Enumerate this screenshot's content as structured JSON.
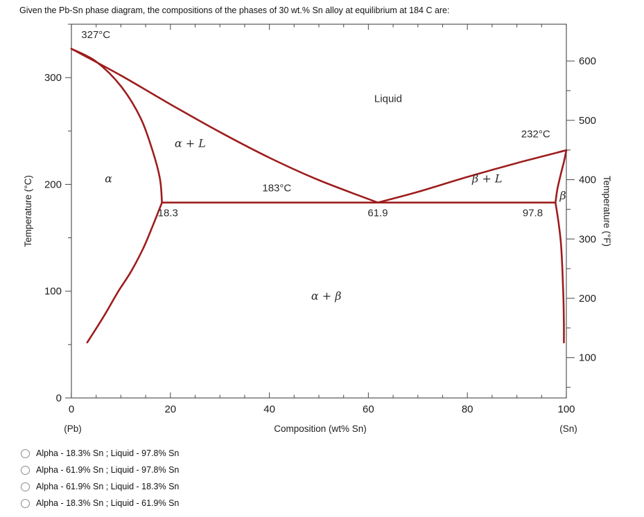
{
  "question": "Given the Pb-Sn phase diagram, the compositions of the phases of 30 wt.% Sn alloy at equilibrium at 184 C are:",
  "options": [
    {
      "label": "Alpha - 18.3% Sn ; Liquid - 97.8% Sn"
    },
    {
      "label": "Alpha - 61.9% Sn ; Liquid - 97.8% Sn"
    },
    {
      "label": "Alpha - 61.9% Sn ; Liquid - 18.3% Sn"
    },
    {
      "label": "Alpha - 18.3% Sn ; Liquid - 61.9% Sn"
    }
  ],
  "chart_data": {
    "type": "line",
    "title": "Pb-Sn phase diagram",
    "xlabel": "Composition (wt% Sn)",
    "ylabel_left": "Temperature (°C)",
    "ylabel_right": "Temperature (°F)",
    "x_endpoint_labels": {
      "left": "(Pb)",
      "right": "(Sn)"
    },
    "xlim": [
      0,
      100
    ],
    "ylim_c": [
      0,
      350
    ],
    "x_ticks": [
      0,
      20,
      40,
      60,
      80,
      100
    ],
    "x_minor_step": 5,
    "y_ticks_c": [
      0,
      100,
      200,
      300
    ],
    "y_minor_step_c": 50,
    "y_ticks_f": [
      100,
      200,
      300,
      400,
      500,
      600
    ],
    "y_minor_step_f": 50,
    "curve_color": "#9e1c1c",
    "frame_color": "#555555",
    "key_points": {
      "pb_melting_c": 327,
      "sn_melting_c": 232,
      "eutectic_temp_c": 183,
      "alpha_max_sn": 18.3,
      "eutectic_composition": 61.9,
      "beta_min_sn": 97.8
    },
    "series": [
      {
        "name": "liquidus-left",
        "points": [
          [
            0,
            327
          ],
          [
            10,
            302
          ],
          [
            20,
            275
          ],
          [
            30,
            249
          ],
          [
            40,
            225
          ],
          [
            50,
            204
          ],
          [
            61.9,
            183
          ]
        ]
      },
      {
        "name": "solidus-left",
        "points": [
          [
            0,
            327
          ],
          [
            5,
            315
          ],
          [
            10,
            292
          ],
          [
            14,
            262
          ],
          [
            16.5,
            230
          ],
          [
            17.9,
            205
          ],
          [
            18.3,
            183
          ]
        ]
      },
      {
        "name": "solvus-left",
        "points": [
          [
            18.3,
            183
          ],
          [
            16.5,
            162
          ],
          [
            14.5,
            140
          ],
          [
            12,
            118
          ],
          [
            9.5,
            100
          ],
          [
            7,
            80
          ],
          [
            5,
            65
          ],
          [
            3.2,
            52
          ]
        ]
      },
      {
        "name": "liquidus-right",
        "points": [
          [
            61.9,
            183
          ],
          [
            70,
            193
          ],
          [
            80,
            207
          ],
          [
            90,
            220
          ],
          [
            100,
            232
          ]
        ]
      },
      {
        "name": "solidus-right",
        "points": [
          [
            97.8,
            183
          ],
          [
            98.2,
            196
          ],
          [
            98.9,
            210
          ],
          [
            99.5,
            221
          ],
          [
            100,
            232
          ]
        ]
      },
      {
        "name": "solvus-right",
        "points": [
          [
            97.8,
            183
          ],
          [
            98.4,
            165
          ],
          [
            98.9,
            145
          ],
          [
            99.2,
            120
          ],
          [
            99.4,
            95
          ],
          [
            99.5,
            70
          ],
          [
            99.5,
            52
          ]
        ]
      },
      {
        "name": "eutectic-isotherm",
        "points": [
          [
            18.3,
            183
          ],
          [
            97.8,
            183
          ]
        ]
      }
    ],
    "annotations": [
      {
        "text": "327°C",
        "x": 2,
        "t": 337,
        "anchor": "start",
        "math": false
      },
      {
        "text": "Liquid",
        "x": 64,
        "t": 277,
        "anchor": "middle",
        "math": false
      },
      {
        "text": "α + L",
        "x": 24,
        "t": 235,
        "anchor": "middle",
        "math": true
      },
      {
        "text": "α",
        "x": 7.5,
        "t": 202,
        "anchor": "middle",
        "math": true
      },
      {
        "text": "183°C",
        "x": 41.5,
        "t": 193.5,
        "anchor": "middle",
        "math": false
      },
      {
        "text": "18.3",
        "x": 19.5,
        "t": 170,
        "anchor": "middle",
        "math": false
      },
      {
        "text": "61.9",
        "x": 61.9,
        "t": 170,
        "anchor": "middle",
        "math": false
      },
      {
        "text": "97.8",
        "x": 93.2,
        "t": 170,
        "anchor": "middle",
        "math": false
      },
      {
        "text": "232°C",
        "x": 93.8,
        "t": 244,
        "anchor": "middle",
        "math": false
      },
      {
        "text": "β + L",
        "x": 84,
        "t": 202,
        "anchor": "middle",
        "math": true
      },
      {
        "text": "β",
        "x": 99.3,
        "t": 186,
        "anchor": "middle",
        "math": true
      },
      {
        "text": "α + β",
        "x": 51.5,
        "t": 92,
        "anchor": "middle",
        "math": true
      }
    ]
  }
}
